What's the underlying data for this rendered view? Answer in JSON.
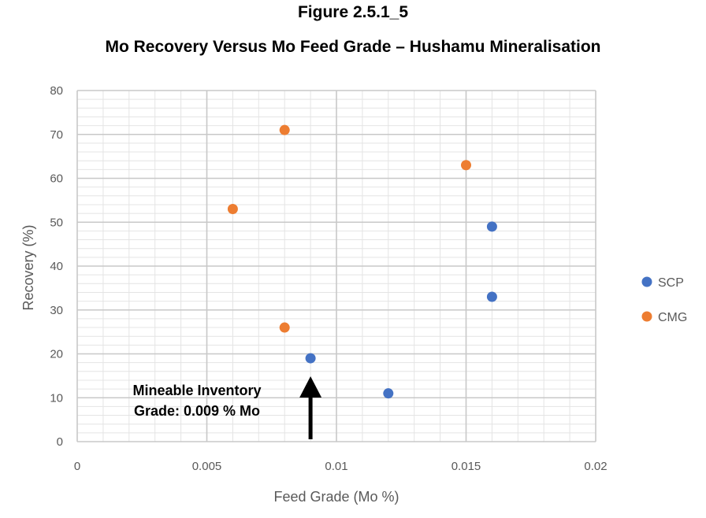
{
  "figure_number": "Figure 2.5.1_5",
  "figure_title": "Mo Recovery Versus Mo Feed Grade – Hushamu Mineralisation",
  "chart_data": {
    "type": "scatter",
    "title": "",
    "xlabel": "Feed Grade (Mo %)",
    "ylabel": "Recovery (%)",
    "xlim": [
      0,
      0.02
    ],
    "ylim": [
      0,
      80
    ],
    "x_ticks": [
      0,
      0.005,
      0.01,
      0.015,
      0.02
    ],
    "x_tick_labels": [
      "0",
      "0.005",
      "0.01",
      "0.015",
      "0.02"
    ],
    "y_ticks": [
      0,
      10,
      20,
      30,
      40,
      50,
      60,
      70,
      80
    ],
    "y_tick_labels": [
      "0",
      "10",
      "20",
      "30",
      "40",
      "50",
      "60",
      "70",
      "80"
    ],
    "grid": true,
    "legend_position": "right",
    "series": [
      {
        "name": "SCP",
        "color": "#4472C4",
        "points": [
          {
            "x": 0.009,
            "y": 19
          },
          {
            "x": 0.012,
            "y": 11
          },
          {
            "x": 0.016,
            "y": 33
          },
          {
            "x": 0.016,
            "y": 49
          }
        ]
      },
      {
        "name": "CMG",
        "color": "#ED7D31",
        "points": [
          {
            "x": 0.006,
            "y": 53
          },
          {
            "x": 0.008,
            "y": 71
          },
          {
            "x": 0.008,
            "y": 26
          },
          {
            "x": 0.015,
            "y": 63
          }
        ]
      }
    ],
    "annotation": {
      "line1": "Mineable Inventory",
      "line2": "Grade: 0.009 % Mo",
      "arrow_x": 0.009
    }
  }
}
